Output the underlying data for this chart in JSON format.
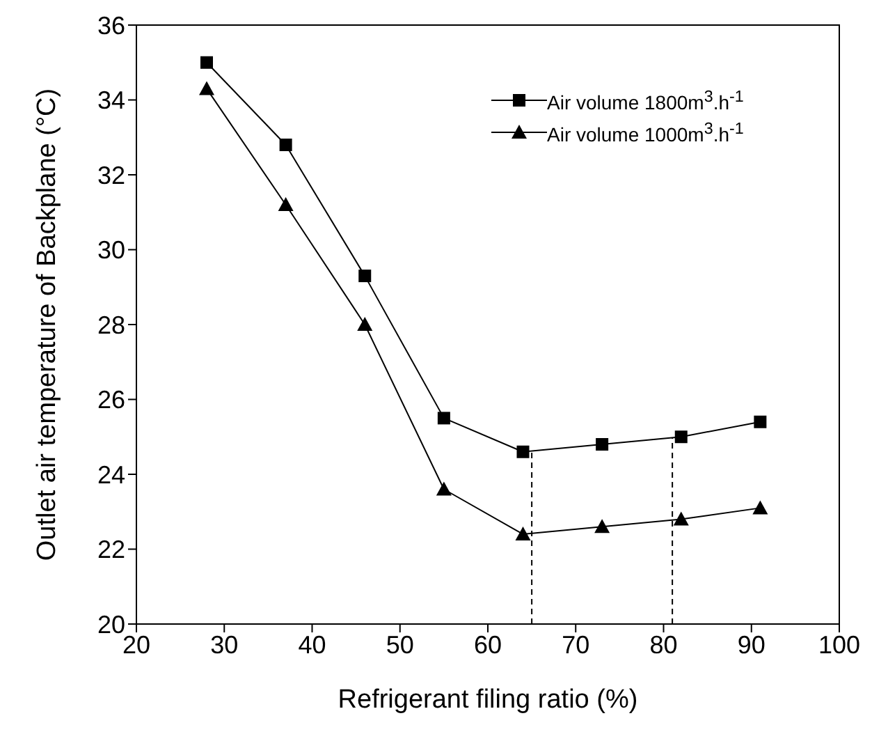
{
  "chart_data": {
    "type": "line",
    "xlabel": "Refrigerant filing ratio (%)",
    "ylabel": "Outlet air temperature of  Backplane (°C)",
    "x": [
      28,
      37,
      46,
      55,
      64,
      73,
      82,
      91
    ],
    "series": [
      {
        "name": "Air volume 1800m$^{3}$.h$^{-1}$",
        "color": "#000000",
        "marker": "square",
        "values": [
          35,
          32.8,
          29.3,
          25.5,
          24.6,
          24.8,
          25.0,
          25.4
        ]
      },
      {
        "name": "Air volume 1000m$^{3}$.h$^{-1}$",
        "color": "#000000",
        "marker": "triangle",
        "values": [
          34.3,
          31.2,
          28.0,
          23.6,
          22.4,
          22.6,
          22.8,
          23.1
        ]
      }
    ],
    "xlim": [
      20,
      100
    ],
    "xticks": [
      20,
      30,
      40,
      50,
      60,
      70,
      80,
      90,
      100
    ],
    "ylim": [
      20,
      36
    ],
    "yticks": [
      20,
      22,
      24,
      26,
      28,
      30,
      32,
      34,
      36
    ],
    "ref_lines": [
      {
        "axis": "x",
        "value": 65,
        "line_style": "dashed",
        "color": "#000000"
      },
      {
        "axis": "x",
        "value": 81,
        "line_style": "dashed",
        "color": "#000000"
      }
    ],
    "grid": false,
    "legend": "top right",
    "line_style": "solid"
  }
}
